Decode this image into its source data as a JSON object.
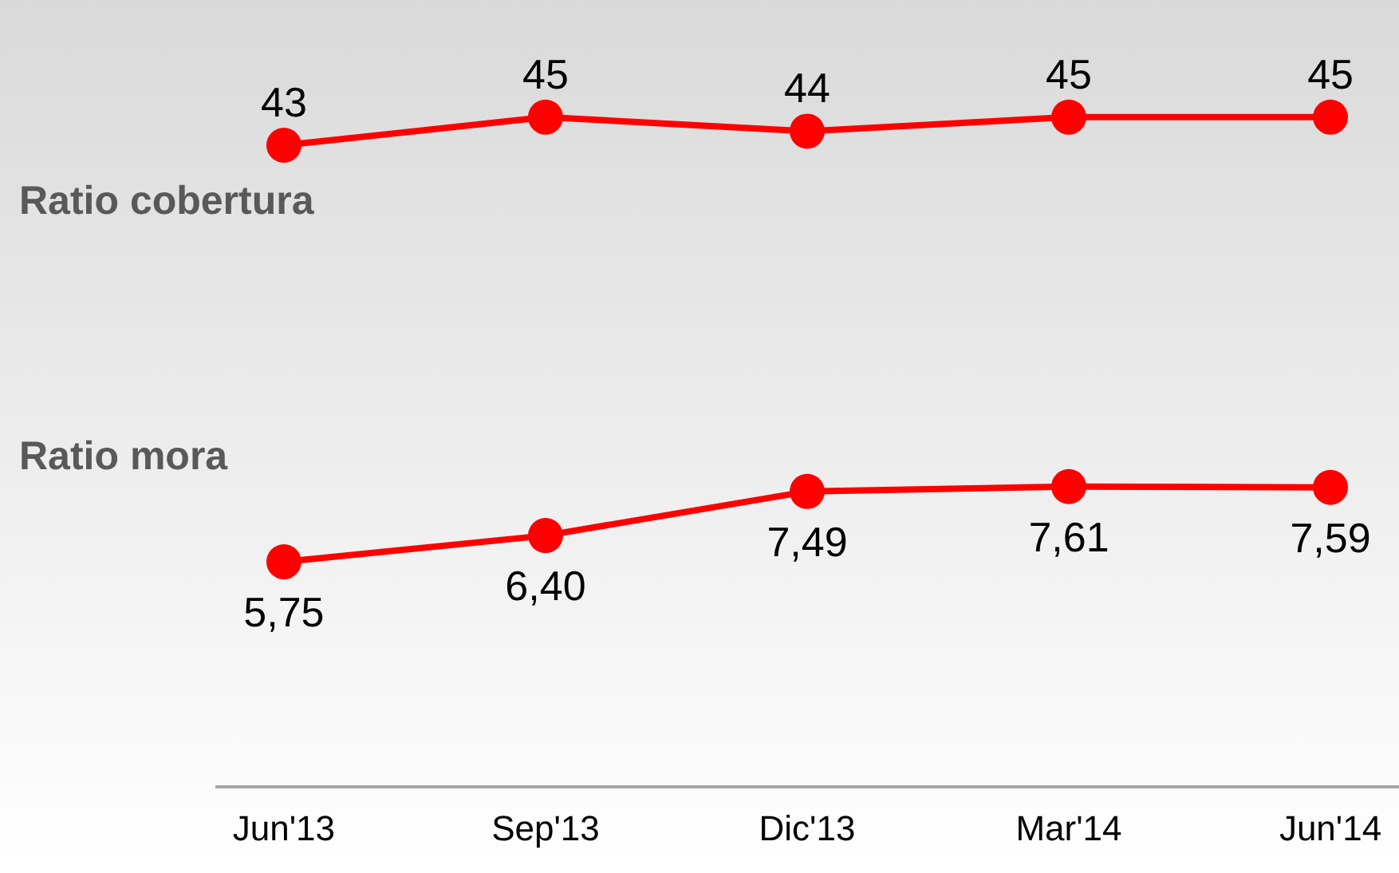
{
  "chart_data": [
    {
      "type": "line",
      "categories": [
        null,
        null,
        null,
        null,
        null
      ],
      "series": [
        {
          "name": "Ratio cobertura",
          "color": "#ff0000",
          "values": [
            43,
            45,
            44,
            45,
            45
          ]
        }
      ],
      "data_labels": true,
      "marker": "circle",
      "grid": false,
      "legend": false,
      "tick_labels": false
    },
    {
      "type": "line",
      "categories": [
        "Jun'13",
        "Sep'13",
        "Dic'13",
        "Mar'14",
        "Jun'14"
      ],
      "series": [
        {
          "name": "Ratio mora",
          "color": "#ff0000",
          "values": [
            5.75,
            6.4,
            7.49,
            7.61,
            7.59
          ],
          "value_labels": [
            "5,75",
            "6,40",
            "7,49",
            "7,61",
            "7,59"
          ]
        }
      ],
      "marker": "circle",
      "grid": false,
      "legend": false,
      "tick_labels": "x"
    }
  ]
}
